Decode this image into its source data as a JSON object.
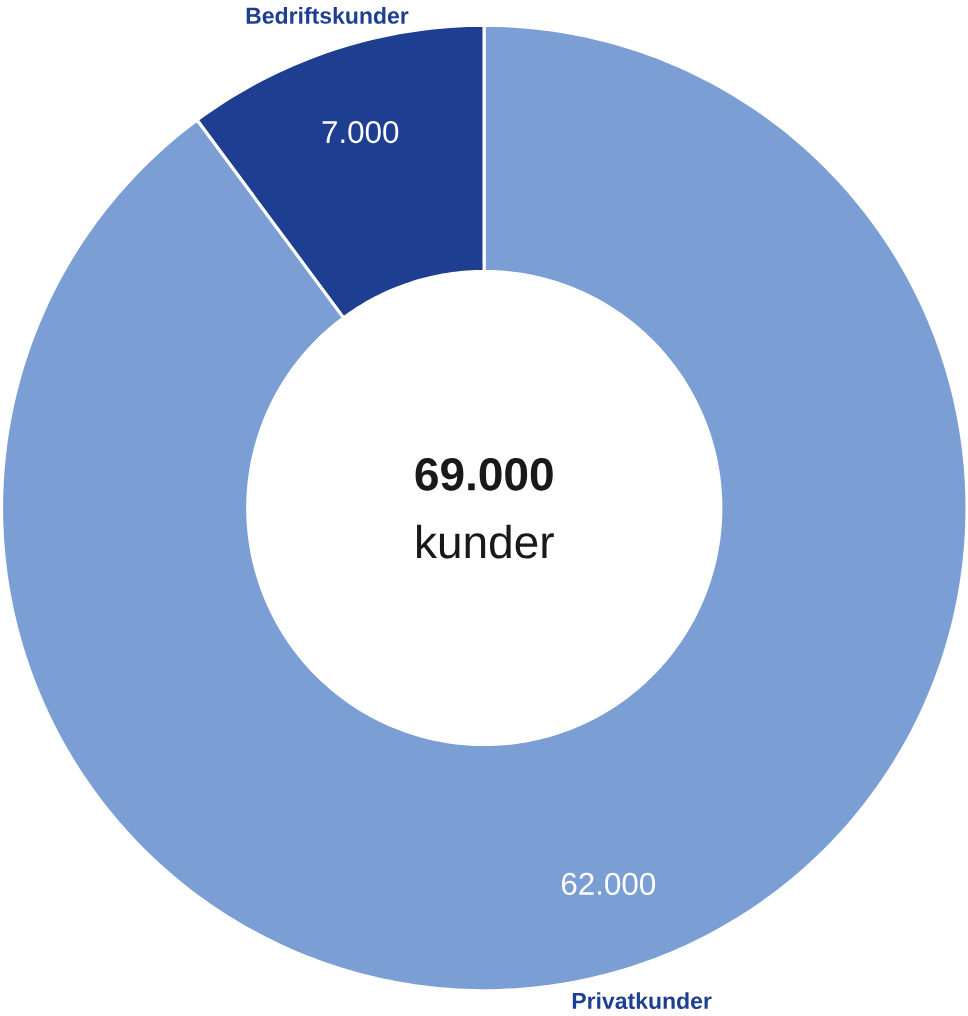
{
  "chart_data": {
    "type": "donut",
    "categories": [
      "Bedriftskunder",
      "Privatkunder"
    ],
    "values": [
      7000,
      62000
    ],
    "colors": [
      "#1e3f91",
      "#7b9fd4"
    ],
    "value_labels": [
      "7.000",
      "62.000"
    ],
    "annotations": [
      "69.000",
      "kunder"
    ]
  }
}
